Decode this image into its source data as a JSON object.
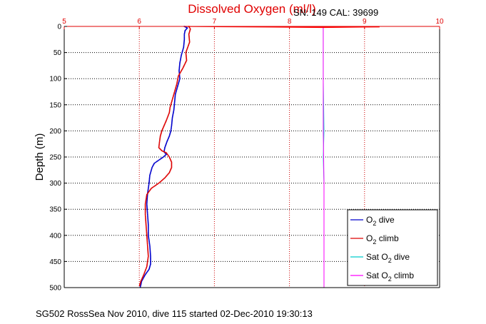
{
  "chart_data": {
    "type": "line",
    "title": "Dissolved Oxygen (ml/l)",
    "serial_label": "SN: 149  CAL: 39699",
    "ylabel": "Depth (m)",
    "footer": "SG502 RossSea Nov 2010, dive 115 started 02-Dec-2010 19:30:13",
    "xlim": [
      5,
      10
    ],
    "ylim": [
      0,
      500
    ],
    "y_inverted": true,
    "x_axis_position": "top",
    "x_ticks": [
      5,
      6,
      7,
      8,
      9,
      10
    ],
    "y_ticks": [
      0,
      50,
      100,
      150,
      200,
      250,
      300,
      350,
      400,
      450,
      500
    ],
    "grid": true,
    "legend_position": "bottom-right",
    "colors": {
      "x_axis": "#e00000",
      "grid_x": "#cc0000",
      "grid_y": "#000000"
    },
    "series": [
      {
        "legend": "O2 dive",
        "label_main": "O",
        "label_sub": "2",
        "label_rest": " dive",
        "color": "#0000cc",
        "style": "dots",
        "points": [
          [
            6.6,
            0
          ],
          [
            6.64,
            3
          ],
          [
            6.61,
            8
          ],
          [
            6.6,
            15
          ],
          [
            6.6,
            25
          ],
          [
            6.59,
            40
          ],
          [
            6.56,
            55
          ],
          [
            6.54,
            70
          ],
          [
            6.53,
            85
          ],
          [
            6.54,
            100
          ],
          [
            6.51,
            115
          ],
          [
            6.48,
            130
          ],
          [
            6.47,
            145
          ],
          [
            6.46,
            160
          ],
          [
            6.44,
            175
          ],
          [
            6.43,
            190
          ],
          [
            6.42,
            200
          ],
          [
            6.4,
            210
          ],
          [
            6.37,
            220
          ],
          [
            6.34,
            232
          ],
          [
            6.33,
            240
          ],
          [
            6.36,
            245
          ],
          [
            6.32,
            250
          ],
          [
            6.27,
            255
          ],
          [
            6.2,
            262
          ],
          [
            6.17,
            270
          ],
          [
            6.14,
            285
          ],
          [
            6.13,
            300
          ],
          [
            6.11,
            320
          ],
          [
            6.1,
            340
          ],
          [
            6.11,
            360
          ],
          [
            6.12,
            380
          ],
          [
            6.12,
            400
          ],
          [
            6.14,
            420
          ],
          [
            6.15,
            440
          ],
          [
            6.15,
            455
          ],
          [
            6.13,
            465
          ],
          [
            6.08,
            475
          ],
          [
            6.03,
            488
          ],
          [
            6.02,
            495
          ],
          [
            6.01,
            500
          ]
        ]
      },
      {
        "legend": "O2 climb",
        "label_main": "O",
        "label_sub": "2",
        "label_rest": " climb",
        "color": "#dd0000",
        "style": "dots",
        "points": [
          [
            6.66,
            0
          ],
          [
            6.68,
            5
          ],
          [
            6.66,
            15
          ],
          [
            6.67,
            30
          ],
          [
            6.62,
            50
          ],
          [
            6.63,
            65
          ],
          [
            6.58,
            80
          ],
          [
            6.52,
            95
          ],
          [
            6.5,
            110
          ],
          [
            6.47,
            125
          ],
          [
            6.44,
            140
          ],
          [
            6.41,
            155
          ],
          [
            6.4,
            165
          ],
          [
            6.36,
            180
          ],
          [
            6.33,
            190
          ],
          [
            6.3,
            200
          ],
          [
            6.28,
            210
          ],
          [
            6.27,
            220
          ],
          [
            6.26,
            232
          ],
          [
            6.3,
            238
          ],
          [
            6.36,
            242
          ],
          [
            6.4,
            250
          ],
          [
            6.43,
            260
          ],
          [
            6.43,
            270
          ],
          [
            6.4,
            280
          ],
          [
            6.34,
            290
          ],
          [
            6.26,
            300
          ],
          [
            6.16,
            310
          ],
          [
            6.1,
            322
          ],
          [
            6.08,
            340
          ],
          [
            6.08,
            360
          ],
          [
            6.09,
            380
          ],
          [
            6.1,
            400
          ],
          [
            6.11,
            420
          ],
          [
            6.12,
            440
          ],
          [
            6.1,
            460
          ],
          [
            6.06,
            475
          ],
          [
            6.02,
            488
          ],
          [
            6.0,
            498
          ]
        ]
      },
      {
        "legend": "Sat O2 dive",
        "label_main": "Sat O",
        "label_sub": "2",
        "label_rest": " dive",
        "color": "#00cccc",
        "style": "line",
        "points": [
          [
            8.45,
            0
          ],
          [
            8.45,
            100
          ],
          [
            8.46,
            200
          ],
          [
            8.45,
            250
          ],
          [
            8.46,
            300
          ],
          [
            8.46,
            400
          ],
          [
            8.46,
            500
          ]
        ]
      },
      {
        "legend": "Sat O2 climb",
        "label_main": "Sat O",
        "label_sub": "2",
        "label_rest": " climb",
        "color": "#ff00ff",
        "style": "line",
        "points": [
          [
            8.45,
            0
          ],
          [
            8.45,
            100
          ],
          [
            8.45,
            200
          ],
          [
            8.46,
            300
          ],
          [
            8.46,
            400
          ],
          [
            8.46,
            500
          ]
        ]
      }
    ],
    "surface_spike": {
      "color": "#ff0000",
      "points": [
        [
          6.6,
          0
        ],
        [
          7.05,
          0.6
        ],
        [
          9.2,
          1.0
        ],
        [
          8.45,
          2.0
        ],
        [
          7.0,
          0.5
        ]
      ]
    }
  }
}
